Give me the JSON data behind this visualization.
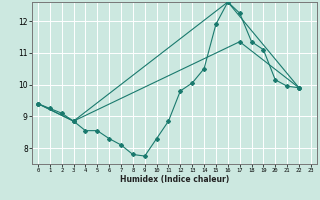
{
  "xlabel": "Humidex (Indice chaleur)",
  "background_color": "#cce8e0",
  "grid_color": "#ffffff",
  "line_color": "#1a7a6e",
  "xlim": [
    -0.5,
    23.5
  ],
  "ylim": [
    7.5,
    12.6
  ],
  "xticks": [
    0,
    1,
    2,
    3,
    4,
    5,
    6,
    7,
    8,
    9,
    10,
    11,
    12,
    13,
    14,
    15,
    16,
    17,
    18,
    19,
    20,
    21,
    22,
    23
  ],
  "yticks": [
    8,
    9,
    10,
    11,
    12
  ],
  "line1_x": [
    0,
    1,
    2,
    3,
    4,
    5,
    6,
    7,
    8,
    9,
    10,
    11,
    12,
    13,
    14,
    15,
    16,
    17,
    18,
    19,
    20,
    21,
    22
  ],
  "line1_y": [
    9.4,
    9.25,
    9.1,
    8.85,
    8.55,
    8.55,
    8.3,
    8.1,
    7.8,
    7.75,
    8.3,
    8.85,
    9.8,
    10.05,
    10.5,
    11.9,
    12.6,
    12.25,
    11.35,
    11.1,
    10.15,
    9.95,
    9.9
  ],
  "line2_x": [
    0,
    3,
    16,
    22
  ],
  "line2_y": [
    9.4,
    8.85,
    12.6,
    9.9
  ],
  "line3_x": [
    0,
    3,
    17,
    22
  ],
  "line3_y": [
    9.4,
    8.85,
    11.35,
    9.9
  ]
}
